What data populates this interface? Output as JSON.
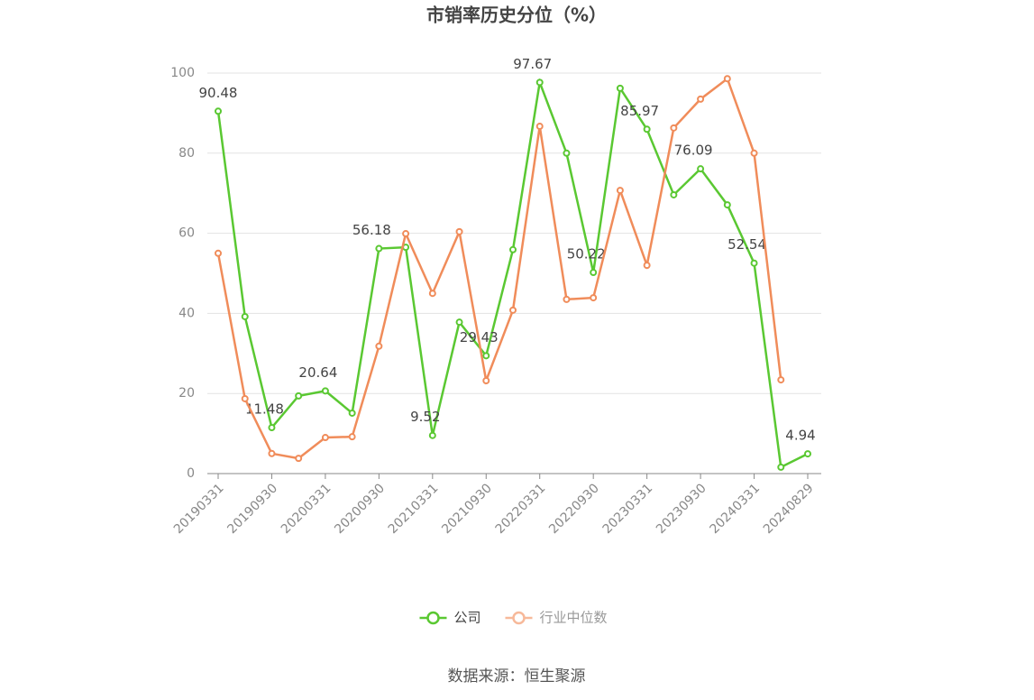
{
  "chart_data": {
    "type": "line",
    "title": "市销率历史分位（%）",
    "categories": [
      "20190331",
      null,
      "20190930",
      null,
      "20200331",
      null,
      "20200930",
      null,
      "20210331",
      null,
      "20210930",
      null,
      "20220331",
      null,
      "20220930",
      null,
      "20230331",
      null,
      "20230930",
      null,
      "20240331",
      null,
      "20240829"
    ],
    "series": [
      {
        "name": "公司",
        "color": "#5ac832",
        "values": [
          90.48,
          39.2,
          11.48,
          19.4,
          20.64,
          15.1,
          56.18,
          56.5,
          9.52,
          37.8,
          29.43,
          55.9,
          97.67,
          80.0,
          50.22,
          96.2,
          85.97,
          69.6,
          76.09,
          67.1,
          52.54,
          1.6,
          4.94
        ],
        "value_labels": [
          "90.48",
          null,
          "11.48",
          null,
          "20.64",
          null,
          "56.18",
          null,
          "9.52",
          null,
          "29.43",
          null,
          "97.67",
          null,
          "50.22",
          null,
          "85.97",
          null,
          "76.09",
          null,
          "52.54",
          null,
          "4.94"
        ]
      },
      {
        "name": "行业中位数",
        "color": "#f08c5a",
        "values": [
          55.0,
          18.7,
          5.0,
          3.8,
          9.0,
          9.2,
          31.8,
          59.9,
          45.0,
          60.4,
          23.2,
          40.8,
          86.7,
          43.5,
          43.9,
          70.7,
          52.0,
          86.3,
          93.5,
          98.6,
          80.0,
          23.4,
          null
        ]
      }
    ],
    "ylim": [
      0,
      100
    ],
    "yticks": [
      0,
      20,
      40,
      60,
      80,
      100
    ],
    "grid": true,
    "legend": "bottom",
    "source": "数据来源：恒生聚源"
  }
}
